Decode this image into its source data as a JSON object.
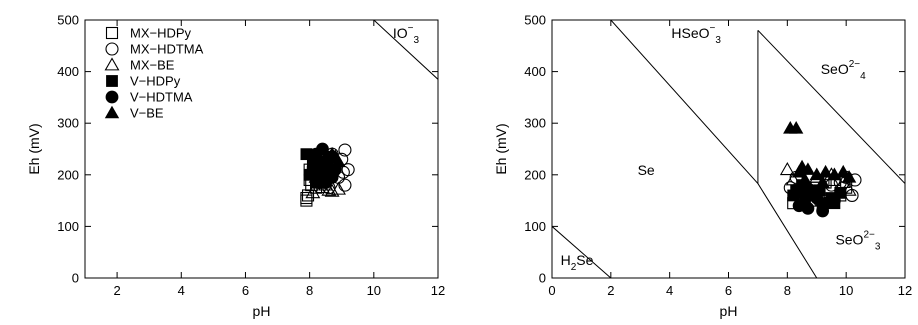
{
  "chart_data": [
    {
      "type": "scatter",
      "title": "",
      "xlabel": "pH",
      "ylabel": "Eh (mV)",
      "xlim": [
        1,
        12
      ],
      "ylim": [
        0,
        500
      ],
      "xticks": [
        "2",
        "4",
        "6",
        "8",
        "10",
        "12"
      ],
      "yticks": [
        "0",
        "100",
        "200",
        "300",
        "400",
        "500"
      ],
      "grid": false,
      "legend_position": "top-left",
      "boundary_lines": [
        {
          "x": [
            10,
            12
          ],
          "y": [
            500,
            385
          ]
        }
      ],
      "region_labels": [
        {
          "base": "IO",
          "sup": "−",
          "sub": "3",
          "x": 11.0,
          "y": 465
        }
      ],
      "series": [
        {
          "name": "MX−HDPy",
          "marker": "open-square",
          "x": [
            7.9,
            7.9,
            8.0,
            8.1,
            8.0,
            8.3,
            8.2,
            8.4,
            7.95,
            8.05
          ],
          "y": [
            150,
            155,
            190,
            205,
            210,
            185,
            175,
            200,
            160,
            180
          ]
        },
        {
          "name": "MX−HDTMA",
          "marker": "open-circle",
          "x": [
            9.1,
            9.2,
            9.0,
            8.8,
            9.1,
            8.6,
            8.9,
            8.3,
            8.7,
            9.05
          ],
          "y": [
            248,
            210,
            230,
            215,
            180,
            175,
            195,
            185,
            240,
            205
          ]
        },
        {
          "name": "MX−BE",
          "marker": "open-triangle",
          "x": [
            8.1,
            8.4,
            8.6,
            8.9,
            8.7,
            8.2,
            8.5
          ],
          "y": [
            165,
            175,
            170,
            172,
            168,
            195,
            180
          ]
        },
        {
          "name": "V−HDPy",
          "marker": "filled-square",
          "x": [
            7.9,
            8.1,
            8.2,
            8.0,
            8.4,
            8.3,
            8.6,
            8.2,
            8.5
          ],
          "y": [
            240,
            220,
            230,
            200,
            215,
            205,
            235,
            185,
            195
          ]
        },
        {
          "name": "V−HDTMA",
          "marker": "filled-circle",
          "x": [
            8.4,
            8.6,
            8.5,
            8.3,
            8.7,
            8.4,
            8.5,
            8.8,
            8.2
          ],
          "y": [
            250,
            230,
            215,
            205,
            195,
            225,
            185,
            210,
            240
          ]
        },
        {
          "name": "V−BE",
          "marker": "filled-triangle",
          "x": [
            8.8,
            8.9,
            8.6,
            8.7
          ],
          "y": [
            235,
            225,
            215,
            240
          ]
        }
      ]
    },
    {
      "type": "scatter",
      "title": "",
      "xlabel": "pH",
      "ylabel": "Eh (mV)",
      "xlim": [
        0,
        12
      ],
      "ylim": [
        0,
        500
      ],
      "xticks": [
        "0",
        "2",
        "4",
        "6",
        "8",
        "10",
        "12"
      ],
      "yticks": [
        "0",
        "100",
        "200",
        "300",
        "400",
        "500"
      ],
      "grid": false,
      "boundary_lines": [
        {
          "x": [
            0,
            2
          ],
          "y": [
            100,
            0
          ]
        },
        {
          "x": [
            2,
            7,
            9
          ],
          "y": [
            500,
            183,
            0
          ]
        },
        {
          "x": [
            7,
            7
          ],
          "y": [
            183,
            480
          ]
        },
        {
          "x": [
            7,
            12
          ],
          "y": [
            480,
            183
          ]
        }
      ],
      "region_labels": [
        {
          "base": "H",
          "sub": "2",
          "tail": "Se",
          "x": 0.85,
          "y": 25
        },
        {
          "base": "Se",
          "x": 3.2,
          "y": 200
        },
        {
          "base": "HSeO",
          "sup": "−",
          "sub": "3",
          "x": 4.9,
          "y": 465
        },
        {
          "base": "SeO",
          "sup": "2−",
          "sub": "4",
          "x": 9.9,
          "y": 395
        },
        {
          "base": "SeO",
          "sup": "2−",
          "sub": "3",
          "x": 10.4,
          "y": 65
        }
      ],
      "series": [
        {
          "name": "MX−HDPy",
          "marker": "open-square",
          "x": [
            8.2,
            8.5,
            9.0,
            9.6,
            10.0,
            8.8,
            9.3,
            8.4,
            9.8
          ],
          "y": [
            145,
            160,
            175,
            190,
            175,
            150,
            185,
            170,
            160
          ]
        },
        {
          "name": "MX−HDTMA",
          "marker": "open-circle",
          "x": [
            10.0,
            10.2,
            9.8,
            8.3,
            8.6,
            9.5,
            10.3,
            9.1,
            8.1
          ],
          "y": [
            195,
            160,
            185,
            195,
            165,
            180,
            190,
            150,
            175
          ]
        },
        {
          "name": "MX−BE",
          "marker": "open-triangle",
          "x": [
            8.0,
            8.2,
            8.5,
            9.0,
            9.5,
            9.9,
            8.7,
            10.1
          ],
          "y": [
            210,
            190,
            175,
            195,
            200,
            185,
            160,
            170
          ]
        },
        {
          "name": "V−HDPy",
          "marker": "filled-square",
          "x": [
            8.3,
            8.6,
            8.9,
            9.2,
            9.5,
            9.8,
            8.5,
            9.1,
            9.6,
            8.2
          ],
          "y": [
            170,
            150,
            160,
            140,
            155,
            165,
            180,
            170,
            145,
            160
          ]
        },
        {
          "name": "V−HDTMA",
          "marker": "filled-circle",
          "x": [
            8.4,
            8.7,
            9.0,
            9.3,
            8.5,
            9.6,
            9.2,
            8.8
          ],
          "y": [
            140,
            135,
            155,
            145,
            165,
            150,
            130,
            170
          ]
        },
        {
          "name": "V−BE",
          "marker": "filled-triangle",
          "x": [
            8.1,
            8.3,
            8.5,
            8.4,
            8.7,
            9.0,
            9.3,
            9.6,
            9.9,
            10.1,
            8.6,
            9.2
          ],
          "y": [
            290,
            290,
            215,
            205,
            210,
            200,
            205,
            200,
            205,
            195,
            190,
            185
          ]
        }
      ]
    }
  ]
}
